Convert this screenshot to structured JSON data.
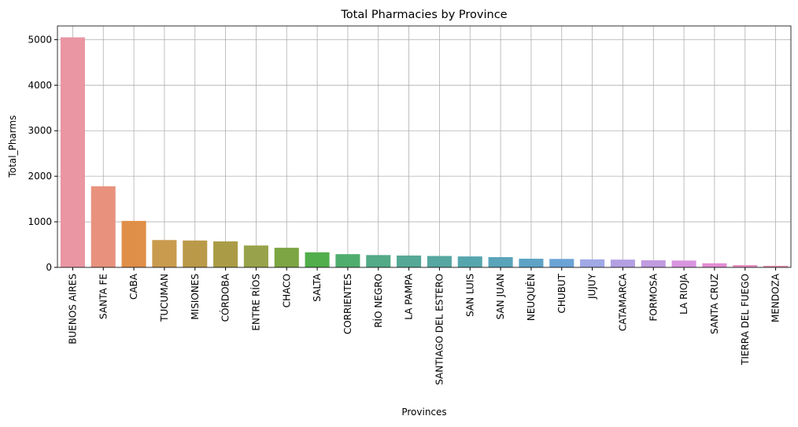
{
  "chart_data": {
    "type": "bar",
    "title": "Total Pharmacies by Province",
    "x_label": "Provinces",
    "y_label": "Total_Pharms",
    "categories": [
      "BUENOS AIRES",
      "SANTA FE",
      "CABA",
      "TUCUMAN",
      "MISIONES",
      "CÓRDOBA",
      "ENTRE RÍOS",
      "CHACO",
      "SALTA",
      "CORRIENTES",
      "RÍO NEGRO",
      "LA PAMPA",
      "SANTIAGO DEL ESTERO",
      "SAN LUIS",
      "SAN JUAN",
      "NEUQUÉN",
      "CHUBUT",
      "JUJUY",
      "CATAMARCA",
      "FORMOSA",
      "LA RIOJA",
      "SANTA CRUZ",
      "TIERRA DEL FUEGO",
      "MENDOZA"
    ],
    "values": [
      5050,
      1780,
      1020,
      600,
      590,
      570,
      480,
      430,
      330,
      290,
      270,
      260,
      250,
      240,
      225,
      190,
      185,
      175,
      170,
      155,
      150,
      90,
      50,
      35
    ],
    "colors": [
      "#ea96a3",
      "#e8927e",
      "#e08f48",
      "#c99b4e",
      "#ba9a49",
      "#aa9c46",
      "#98a24a",
      "#7da543",
      "#52ae4a",
      "#4fae6e",
      "#53aa86",
      "#55a896",
      "#56a7a1",
      "#57a6ad",
      "#5aa4b9",
      "#5ea3c6",
      "#6ba3d6",
      "#a0a8e6",
      "#b3a0e3",
      "#c19be0",
      "#d895e0",
      "#e38dd4",
      "#e88fc5",
      "#ea92b5"
    ],
    "ylim": [
      0,
      5300
    ],
    "yticks": [
      0,
      1000,
      2000,
      3000,
      4000,
      5000
    ],
    "grid": true
  }
}
